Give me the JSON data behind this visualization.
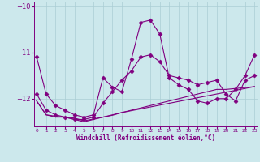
{
  "xlabel": "Windchill (Refroidissement éolien,°C)",
  "x": [
    0,
    1,
    2,
    3,
    4,
    5,
    6,
    7,
    8,
    9,
    10,
    11,
    12,
    13,
    14,
    15,
    16,
    17,
    18,
    19,
    20,
    21,
    22,
    23
  ],
  "series1": [
    -11.1,
    -11.9,
    -12.15,
    -12.25,
    -12.35,
    -12.4,
    -12.35,
    -11.55,
    -11.75,
    -11.85,
    -11.15,
    -10.35,
    -10.3,
    -10.6,
    -11.55,
    -11.7,
    -11.8,
    -12.05,
    -12.1,
    -12.0,
    -12.0,
    -11.8,
    -11.5,
    -11.05
  ],
  "series2": [
    -11.9,
    -12.25,
    -12.35,
    -12.4,
    -12.45,
    -12.45,
    -12.4,
    -12.1,
    -11.85,
    -11.6,
    -11.4,
    -11.1,
    -11.05,
    -11.2,
    -11.5,
    -11.55,
    -11.6,
    -11.7,
    -11.65,
    -11.6,
    -11.9,
    -12.05,
    -11.6,
    -11.5
  ],
  "series3": [
    -12.05,
    -12.35,
    -12.4,
    -12.4,
    -12.45,
    -12.5,
    -12.45,
    -12.4,
    -12.35,
    -12.3,
    -12.25,
    -12.2,
    -12.15,
    -12.1,
    -12.05,
    -12.0,
    -11.95,
    -11.9,
    -11.85,
    -11.8,
    -11.8,
    -11.78,
    -11.76,
    -11.74
  ],
  "series4": [
    -12.05,
    -12.35,
    -12.38,
    -12.4,
    -12.42,
    -12.48,
    -12.44,
    -12.4,
    -12.36,
    -12.3,
    -12.26,
    -12.22,
    -12.18,
    -12.14,
    -12.1,
    -12.06,
    -12.02,
    -11.98,
    -11.94,
    -11.9,
    -11.86,
    -11.82,
    -11.78,
    -11.74
  ],
  "ylim": [
    -12.6,
    -9.9
  ],
  "yticks": [
    -12,
    -11,
    -10
  ],
  "bg_color": "#cce8ec",
  "grid_color": "#aacdd4",
  "line_color": "#800080",
  "marker": "D",
  "markersize": 2.5,
  "linewidth": 0.8
}
